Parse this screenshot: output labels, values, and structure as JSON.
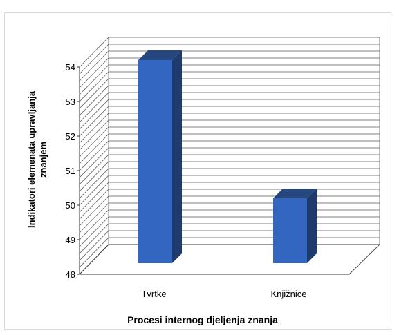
{
  "chart_data": {
    "type": "bar",
    "categories": [
      "Tvrtke",
      "Knjižnice"
    ],
    "values": [
      54,
      50
    ],
    "ylim": [
      48,
      54
    ],
    "yticks": [
      "48",
      "49",
      "50",
      "51",
      "52",
      "53",
      "54"
    ],
    "xlabel": "Procesi internog djeljenja znanja",
    "ylabel_lines": [
      "Indikatori elemenata upravljanja",
      "znanjem"
    ],
    "grid": true,
    "style": "3d-column",
    "colors": {
      "bar_front": "#3366c0",
      "bar_side": "#1f3b6e",
      "bar_top": "#27487f",
      "grid": "#5a5a5a",
      "axis": "#333333"
    }
  }
}
